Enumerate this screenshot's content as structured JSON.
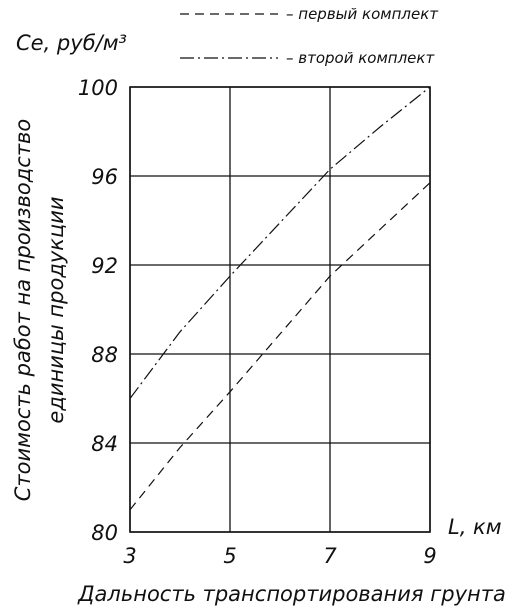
{
  "chart_data": {
    "type": "line",
    "ylabel_short": "Cе, руб/м³",
    "xlabel_short": "L, км",
    "ylabel": [
      "Стоимость работ на производство",
      "единицы продукции"
    ],
    "xlabel": "Дальность транспортирования грунта",
    "x_ticks": [
      "3",
      "5",
      "7",
      "9"
    ],
    "y_ticks": [
      "80",
      "84",
      "88",
      "92",
      "96",
      "100"
    ],
    "xlim": [
      3,
      9
    ],
    "ylim": [
      80,
      100
    ],
    "grid": true,
    "legend": {
      "placement": "top"
    },
    "series": [
      {
        "name": "– первый комплект",
        "style": "dashed",
        "x": [
          3,
          4,
          5,
          6,
          7,
          8,
          9
        ],
        "y": [
          81.0,
          83.8,
          86.3,
          88.9,
          91.5,
          93.6,
          95.7
        ]
      },
      {
        "name": "– второй комплект",
        "style": "dash-dot",
        "x": [
          3,
          4,
          5,
          6,
          7,
          8,
          9
        ],
        "y": [
          86.0,
          89.0,
          91.5,
          93.9,
          96.3,
          98.2,
          100.0
        ]
      }
    ]
  }
}
